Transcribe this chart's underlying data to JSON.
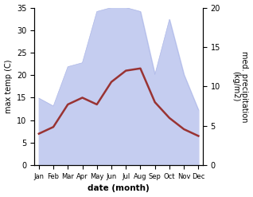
{
  "months": [
    "Jan",
    "Feb",
    "Mar",
    "Apr",
    "May",
    "Jun",
    "Jul",
    "Aug",
    "Sep",
    "Oct",
    "Nov",
    "Dec"
  ],
  "temperature": [
    7.0,
    8.5,
    13.5,
    15.0,
    13.5,
    18.5,
    21.0,
    21.5,
    14.0,
    10.5,
    8.0,
    6.5
  ],
  "precipitation": [
    8.5,
    7.5,
    12.5,
    13.0,
    19.5,
    20.0,
    20.0,
    19.5,
    11.5,
    18.5,
    11.5,
    7.0
  ],
  "temp_color": "#993333",
  "precip_fill_color": "#c5cdf0",
  "precip_edge_color": "#b0bae8",
  "temp_ylim": [
    0,
    35
  ],
  "precip_ylim": [
    0,
    20
  ],
  "ylabel_left": "max temp (C)",
  "ylabel_right": "med. precipitation\n(kg/m2)",
  "xlabel": "date (month)",
  "background_color": "#ffffff",
  "temp_linewidth": 1.8
}
